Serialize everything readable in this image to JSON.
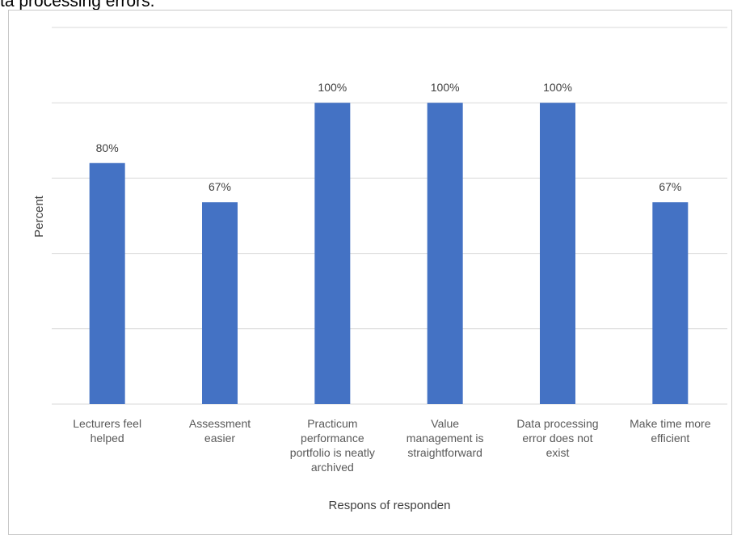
{
  "caption_fragment": "ta processing errors.",
  "chart_data": {
    "type": "bar",
    "title": "",
    "xlabel": "Respons of responden",
    "ylabel": "Percent",
    "ylim": [
      0,
      125
    ],
    "grid": true,
    "categories": [
      [
        "Lecturers feel",
        "helped"
      ],
      [
        "Assessment",
        "easier"
      ],
      [
        "Practicum",
        "performance",
        "portfolio is neatly",
        "archived"
      ],
      [
        "Value",
        "management is",
        "straightforward"
      ],
      [
        "Data processing",
        "error does not",
        "exist"
      ],
      [
        "Make time more",
        "efficient"
      ]
    ],
    "values": [
      80,
      67,
      100,
      100,
      100,
      67
    ],
    "value_labels": [
      "80%",
      "67%",
      "100%",
      "100%",
      "100%",
      "67%"
    ],
    "bar_color": "#4472C4",
    "grid_color": "#d9d9d9"
  }
}
